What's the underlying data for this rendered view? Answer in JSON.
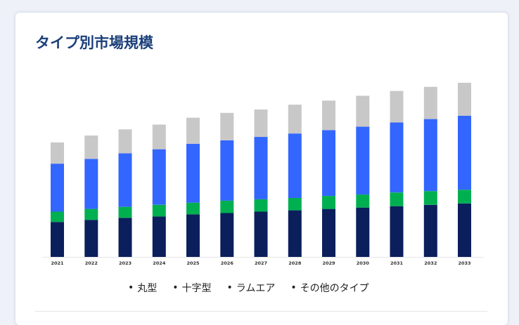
{
  "title": "タイプ別市場規模",
  "chart_data": {
    "type": "bar",
    "stacked": true,
    "categories": [
      "2021",
      "2022",
      "2023",
      "2024",
      "2025",
      "2026",
      "2027",
      "2028",
      "2029",
      "2030",
      "2031",
      "2032",
      "2033"
    ],
    "series": [
      {
        "name": "丸型",
        "color": "#0b1f5c",
        "values": [
          51,
          54,
          57,
          59,
          62,
          64,
          66,
          68,
          70,
          72,
          74,
          76,
          78
        ]
      },
      {
        "name": "十字型",
        "color": "#00b050",
        "values": [
          15,
          16,
          16,
          17,
          17,
          18,
          18,
          18,
          19,
          19,
          20,
          20,
          20
        ]
      },
      {
        "name": "ラムエア",
        "color": "#3366ff",
        "values": [
          70,
          73,
          78,
          81,
          86,
          88,
          91,
          94,
          96,
          99,
          102,
          105,
          108
        ]
      },
      {
        "name": "その他のタイプ",
        "color": "#c8c8c8",
        "values": [
          31,
          34,
          35,
          36,
          38,
          40,
          40,
          42,
          43,
          45,
          46,
          47,
          48
        ]
      }
    ],
    "ymax": 260,
    "grid": false,
    "legend_position": "bottom"
  }
}
